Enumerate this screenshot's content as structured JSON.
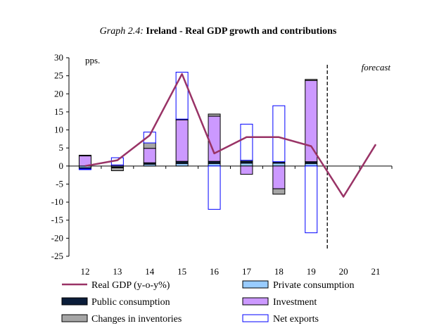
{
  "chart_data": {
    "type": "bar",
    "title_prefix": "Graph 2.4:",
    "title": "Ireland - Real GDP growth and contributions",
    "unit_label": "pps.",
    "forecast_label": "forecast",
    "categories": [
      "12",
      "13",
      "14",
      "15",
      "16",
      "17",
      "18",
      "19",
      "20",
      "21"
    ],
    "ylim": [
      -25,
      30
    ],
    "yticks": [
      30,
      25,
      20,
      15,
      10,
      5,
      0,
      -5,
      -10,
      -15,
      -20,
      -25
    ],
    "stacked_series": [
      {
        "name": "Private consumption",
        "color": "#99ccff",
        "outline": "#000000",
        "values": [
          -0.5,
          -0.3,
          0.5,
          0.7,
          0.7,
          0.8,
          0.8,
          0.7
        ]
      },
      {
        "name": "Public consumption",
        "color": "#0b1d3a",
        "outline": "#000000",
        "values": [
          -0.3,
          -0.2,
          0.4,
          0.6,
          0.6,
          0.5,
          0.4,
          0.5
        ]
      },
      {
        "name": "Investment",
        "color": "#cc99ff",
        "outline": "#000000",
        "values": [
          2.8,
          0.3,
          4.0,
          11.5,
          12.5,
          -2.3,
          -6.3,
          22.5
        ]
      },
      {
        "name": "Changes in inventories",
        "color": "#a6a6a6",
        "outline": "#000000",
        "values": [
          0.2,
          -0.8,
          1.5,
          0.2,
          0.6,
          0.3,
          -1.5,
          0.3
        ]
      },
      {
        "name": "Net exports",
        "color": "#ffffff",
        "outline": "#0000ff",
        "values": [
          -0.2,
          2.0,
          3.0,
          13.0,
          -12.0,
          10.0,
          15.5,
          -18.5
        ]
      }
    ],
    "line_series": {
      "name": "Real GDP (y-o-y%)",
      "color": "#993366",
      "values": [
        0.0,
        1.6,
        8.5,
        25.5,
        3.5,
        8.0,
        8.0,
        5.5,
        -8.5,
        6.0
      ]
    },
    "forecast_start_index": 8,
    "legend_order": [
      "Real GDP (y-o-y%)",
      "Private consumption",
      "Public consumption",
      "Investment",
      "Changes in inventories",
      "Net exports"
    ],
    "legend_placement": "bottom"
  }
}
